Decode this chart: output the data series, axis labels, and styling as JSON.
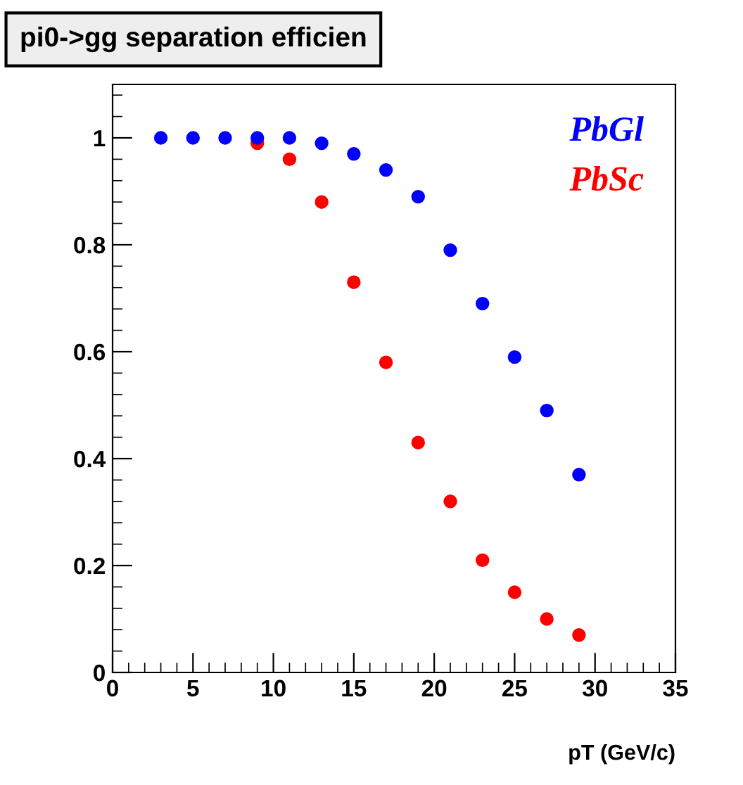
{
  "chart_data": {
    "type": "scatter",
    "title": "pi0->gg separation efficien",
    "xlabel": "pT (GeV/c)",
    "x": [
      3,
      5,
      7,
      9,
      11,
      13,
      15,
      17,
      19,
      21,
      23,
      25,
      27,
      29
    ],
    "series": [
      {
        "name": "PbGl",
        "color": "#0000ff",
        "values": [
          1.0,
          1.0,
          1.0,
          1.0,
          1.0,
          0.99,
          0.97,
          0.94,
          0.89,
          0.79,
          0.69,
          0.59,
          0.49,
          0.37
        ]
      },
      {
        "name": "PbSc",
        "color": "#ff0000",
        "values": [
          null,
          null,
          null,
          0.99,
          0.96,
          0.88,
          0.73,
          0.58,
          0.43,
          0.32,
          0.21,
          0.15,
          0.1,
          0.07
        ]
      }
    ],
    "xlim": [
      0,
      35
    ],
    "xticks": [
      0,
      5,
      10,
      15,
      20,
      25,
      30,
      35
    ],
    "ylim": [
      0,
      1.1
    ],
    "yticks": [
      0,
      0.2,
      0.4,
      0.6,
      0.8,
      1
    ],
    "marker": "circle",
    "legend": "top right",
    "grid": false
  }
}
